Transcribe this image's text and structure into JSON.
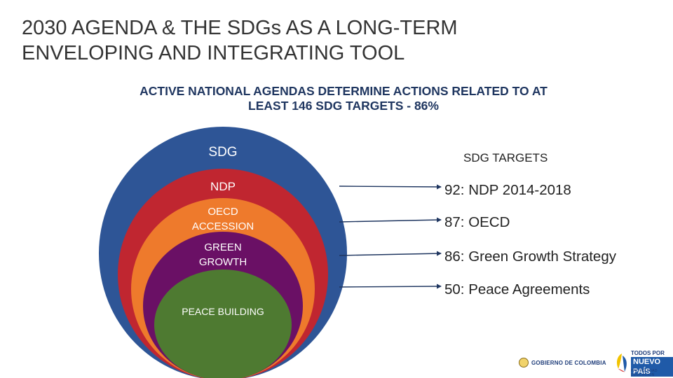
{
  "title": "2030 AGENDA & THE SDGs AS A LONG-TERM\nENVELOPING AND INTEGRATING TOOL",
  "subtitle": "ACTIVE NATIONAL AGENDAS DETERMINE ACTIONS RELATED TO AT\nLEAST 146 SDG TARGETS - 86%",
  "colors": {
    "sdg": "#2e5596",
    "ndp": "#c02630",
    "oecd": "#ee7a2c",
    "green_growth": "#6a1065",
    "peace": "#4e7a31",
    "arrow": "#1f3660"
  },
  "circles": [
    {
      "id": "sdg",
      "label": "SDG"
    },
    {
      "id": "ndp",
      "label": "NDP"
    },
    {
      "id": "oecd",
      "label_line1": "OECD",
      "label_line2": "ACCESSION"
    },
    {
      "id": "green_growth",
      "label_line1": "GREEN",
      "label_line2": "GROWTH"
    },
    {
      "id": "peace",
      "label": "PEACE BUILDING"
    }
  ],
  "targets": {
    "header": "SDG TARGETS",
    "items": [
      {
        "text": "92: NDP 2014-2018"
      },
      {
        "text": "87: OECD"
      },
      {
        "text": "86: Green Growth Strategy"
      },
      {
        "text": "50: Peace Agreements"
      }
    ]
  },
  "logos": {
    "gobierno": "GOBIERNO DE COLOMBIA",
    "tpnp_line1": "TODOS POR UN",
    "tpnp_line2": "NUEVO PAÍS",
    "tpnp_line3": "PAZ EQUIDAD EDUCACIÓN"
  }
}
